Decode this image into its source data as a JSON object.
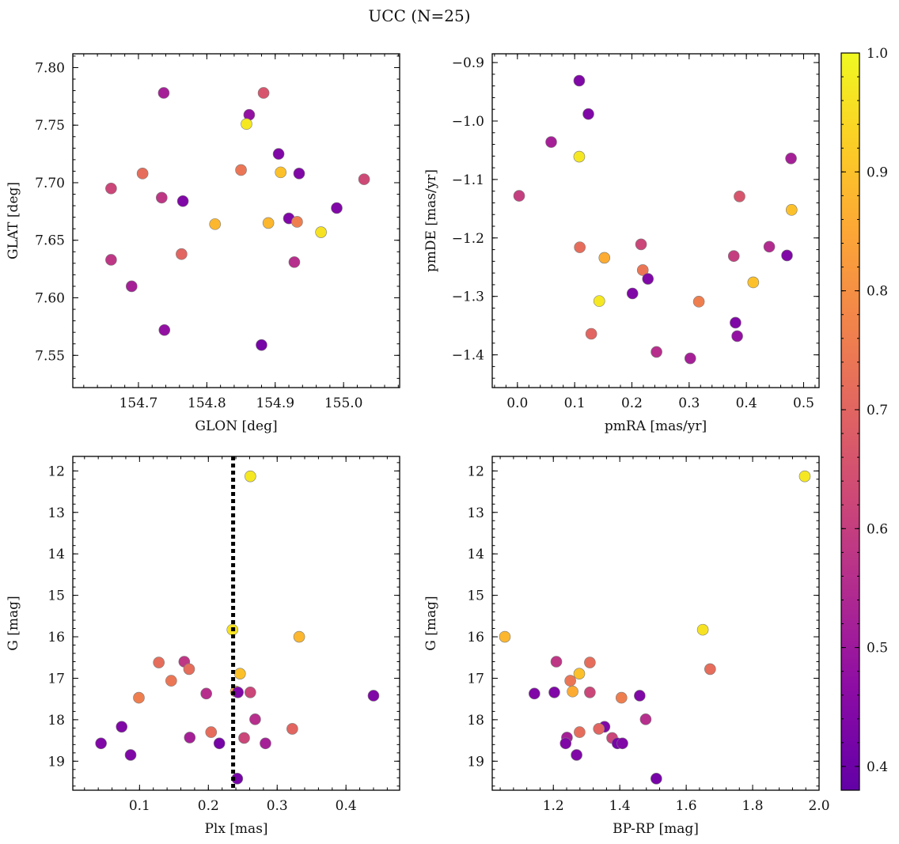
{
  "figure": {
    "title": "UCC (N=25)"
  },
  "colorbar": {
    "min": 0.38,
    "max": 1.0,
    "ticks": [
      0.4,
      0.5,
      0.6,
      0.7,
      0.8,
      0.9,
      1.0
    ],
    "tick_labels": [
      "0.4",
      "0.5",
      "0.6",
      "0.7",
      "0.8",
      "0.9",
      "1.0"
    ],
    "colormap": "plasma"
  },
  "chart_data": [
    {
      "type": "scatter",
      "id": "glon-glat",
      "xlabel": "GLON [deg]",
      "ylabel": "GLAT [deg]",
      "xlim": [
        154.604,
        155.082
      ],
      "ylim": [
        7.522,
        7.812
      ],
      "y_inverted": false,
      "xticks": [
        154.7,
        154.8,
        154.9,
        155.0
      ],
      "xtick_labels": [
        "154.7",
        "154.8",
        "154.9",
        "155.0"
      ],
      "yticks": [
        7.55,
        7.6,
        7.65,
        7.7,
        7.75,
        7.8
      ],
      "ytick_labels": [
        "7.55",
        "7.60",
        "7.65",
        "7.70",
        "7.75",
        "7.80"
      ],
      "points": [
        {
          "x": 154.737,
          "y": 7.778,
          "c": 0.52
        },
        {
          "x": 154.883,
          "y": 7.778,
          "c": 0.66
        },
        {
          "x": 154.862,
          "y": 7.759,
          "c": 0.48
        },
        {
          "x": 154.858,
          "y": 7.751,
          "c": 0.97
        },
        {
          "x": 154.905,
          "y": 7.725,
          "c": 0.44
        },
        {
          "x": 154.85,
          "y": 7.711,
          "c": 0.74
        },
        {
          "x": 154.706,
          "y": 7.708,
          "c": 0.72
        },
        {
          "x": 154.908,
          "y": 7.709,
          "c": 0.9
        },
        {
          "x": 154.935,
          "y": 7.708,
          "c": 0.44
        },
        {
          "x": 155.03,
          "y": 7.703,
          "c": 0.63
        },
        {
          "x": 154.66,
          "y": 7.695,
          "c": 0.62
        },
        {
          "x": 154.734,
          "y": 7.687,
          "c": 0.58
        },
        {
          "x": 154.765,
          "y": 7.684,
          "c": 0.44
        },
        {
          "x": 154.99,
          "y": 7.678,
          "c": 0.44
        },
        {
          "x": 154.92,
          "y": 7.669,
          "c": 0.44
        },
        {
          "x": 154.932,
          "y": 7.666,
          "c": 0.76
        },
        {
          "x": 154.812,
          "y": 7.664,
          "c": 0.88
        },
        {
          "x": 154.89,
          "y": 7.665,
          "c": 0.88
        },
        {
          "x": 154.967,
          "y": 7.657,
          "c": 0.96
        },
        {
          "x": 154.763,
          "y": 7.638,
          "c": 0.7
        },
        {
          "x": 154.66,
          "y": 7.633,
          "c": 0.58
        },
        {
          "x": 154.928,
          "y": 7.631,
          "c": 0.56
        },
        {
          "x": 154.69,
          "y": 7.61,
          "c": 0.52
        },
        {
          "x": 154.738,
          "y": 7.572,
          "c": 0.48
        },
        {
          "x": 154.88,
          "y": 7.559,
          "c": 0.42
        }
      ]
    },
    {
      "type": "scatter",
      "id": "pmra-pmde",
      "xlabel": "pmRA [mas/yr]",
      "ylabel": "pmDE [mas/yr]",
      "xlim": [
        -0.044,
        0.527
      ],
      "ylim": [
        -1.456,
        -0.885
      ],
      "y_inverted": false,
      "xticks": [
        0.0,
        0.1,
        0.2,
        0.3,
        0.4,
        0.5
      ],
      "xtick_labels": [
        "0.0",
        "0.1",
        "0.2",
        "0.3",
        "0.4",
        "0.5"
      ],
      "yticks": [
        -1.4,
        -1.3,
        -1.2,
        -1.1,
        -1.0,
        -0.9
      ],
      "ytick_labels": [
        "−1.4",
        "−1.3",
        "−1.2",
        "−1.1",
        "−1.0",
        "−0.9"
      ],
      "points": [
        {
          "x": 0.108,
          "y": -0.931,
          "c": 0.44
        },
        {
          "x": 0.124,
          "y": -0.988,
          "c": 0.44
        },
        {
          "x": 0.059,
          "y": -1.036,
          "c": 0.52
        },
        {
          "x": 0.108,
          "y": -1.061,
          "c": 0.97
        },
        {
          "x": 0.478,
          "y": -1.064,
          "c": 0.52
        },
        {
          "x": 0.003,
          "y": -1.128,
          "c": 0.6
        },
        {
          "x": 0.388,
          "y": -1.129,
          "c": 0.66
        },
        {
          "x": 0.479,
          "y": -1.152,
          "c": 0.9
        },
        {
          "x": 0.216,
          "y": -1.211,
          "c": 0.62
        },
        {
          "x": 0.109,
          "y": -1.216,
          "c": 0.72
        },
        {
          "x": 0.44,
          "y": -1.215,
          "c": 0.55
        },
        {
          "x": 0.152,
          "y": -1.234,
          "c": 0.86
        },
        {
          "x": 0.378,
          "y": -1.231,
          "c": 0.6
        },
        {
          "x": 0.471,
          "y": -1.23,
          "c": 0.44
        },
        {
          "x": 0.219,
          "y": -1.255,
          "c": 0.74
        },
        {
          "x": 0.228,
          "y": -1.27,
          "c": 0.44
        },
        {
          "x": 0.412,
          "y": -1.276,
          "c": 0.9
        },
        {
          "x": 0.201,
          "y": -1.295,
          "c": 0.44
        },
        {
          "x": 0.143,
          "y": -1.308,
          "c": 0.97
        },
        {
          "x": 0.317,
          "y": -1.309,
          "c": 0.76
        },
        {
          "x": 0.381,
          "y": -1.345,
          "c": 0.44
        },
        {
          "x": 0.129,
          "y": -1.364,
          "c": 0.7
        },
        {
          "x": 0.384,
          "y": -1.368,
          "c": 0.48
        },
        {
          "x": 0.243,
          "y": -1.395,
          "c": 0.56
        },
        {
          "x": 0.302,
          "y": -1.406,
          "c": 0.52
        }
      ]
    },
    {
      "type": "scatter",
      "id": "plx-g",
      "xlabel": "Plx [mas]",
      "ylabel": "G [mag]",
      "xlim": [
        0.003,
        0.478
      ],
      "ylim": [
        19.7,
        11.65
      ],
      "y_inverted": true,
      "vline": {
        "x": 0.236,
        "style": "dotted",
        "color": "#000000"
      },
      "xticks": [
        0.1,
        0.2,
        0.3,
        0.4
      ],
      "xtick_labels": [
        "0.1",
        "0.2",
        "0.3",
        "0.4"
      ],
      "yticks": [
        12,
        13,
        14,
        15,
        16,
        17,
        18,
        19
      ],
      "ytick_labels": [
        "12",
        "13",
        "14",
        "15",
        "16",
        "17",
        "18",
        "19"
      ],
      "points": [
        {
          "x": 0.261,
          "y": 12.13,
          "c": 0.97
        },
        {
          "x": 0.235,
          "y": 15.83,
          "c": 0.96
        },
        {
          "x": 0.332,
          "y": 16.0,
          "c": 0.88
        },
        {
          "x": 0.128,
          "y": 16.62,
          "c": 0.72
        },
        {
          "x": 0.165,
          "y": 16.6,
          "c": 0.58
        },
        {
          "x": 0.172,
          "y": 16.78,
          "c": 0.72
        },
        {
          "x": 0.246,
          "y": 16.89,
          "c": 0.9
        },
        {
          "x": 0.146,
          "y": 17.06,
          "c": 0.74
        },
        {
          "x": 0.24,
          "y": 17.32,
          "c": 0.86
        },
        {
          "x": 0.243,
          "y": 17.34,
          "c": 0.44
        },
        {
          "x": 0.197,
          "y": 17.37,
          "c": 0.56
        },
        {
          "x": 0.261,
          "y": 17.34,
          "c": 0.62
        },
        {
          "x": 0.44,
          "y": 17.42,
          "c": 0.44
        },
        {
          "x": 0.099,
          "y": 17.47,
          "c": 0.76
        },
        {
          "x": 0.268,
          "y": 17.99,
          "c": 0.56
        },
        {
          "x": 0.074,
          "y": 18.17,
          "c": 0.44
        },
        {
          "x": 0.322,
          "y": 18.22,
          "c": 0.7
        },
        {
          "x": 0.204,
          "y": 18.3,
          "c": 0.72
        },
        {
          "x": 0.173,
          "y": 18.43,
          "c": 0.52
        },
        {
          "x": 0.252,
          "y": 18.44,
          "c": 0.62
        },
        {
          "x": 0.044,
          "y": 18.57,
          "c": 0.44
        },
        {
          "x": 0.216,
          "y": 18.57,
          "c": 0.42
        },
        {
          "x": 0.283,
          "y": 18.57,
          "c": 0.52
        },
        {
          "x": 0.087,
          "y": 18.85,
          "c": 0.44
        },
        {
          "x": 0.242,
          "y": 19.42,
          "c": 0.42
        }
      ]
    },
    {
      "type": "scatter",
      "id": "bprp-g",
      "xlabel": "BP-RP [mag]",
      "ylabel": "G [mag]",
      "xlim": [
        1.016,
        2.0
      ],
      "ylim": [
        19.7,
        11.65
      ],
      "y_inverted": true,
      "xticks": [
        1.2,
        1.4,
        1.6,
        1.8,
        2.0
      ],
      "xtick_labels": [
        "1.2",
        "1.4",
        "1.6",
        "1.8",
        "2.0"
      ],
      "yticks": [
        12,
        13,
        14,
        15,
        16,
        17,
        18,
        19
      ],
      "ytick_labels": [
        "12",
        "13",
        "14",
        "15",
        "16",
        "17",
        "18",
        "19"
      ],
      "points": [
        {
          "x": 1.957,
          "y": 12.13,
          "c": 0.97
        },
        {
          "x": 1.65,
          "y": 15.83,
          "c": 0.96
        },
        {
          "x": 1.054,
          "y": 16.0,
          "c": 0.88
        },
        {
          "x": 1.209,
          "y": 16.6,
          "c": 0.58
        },
        {
          "x": 1.31,
          "y": 16.62,
          "c": 0.72
        },
        {
          "x": 1.672,
          "y": 16.78,
          "c": 0.72
        },
        {
          "x": 1.278,
          "y": 16.89,
          "c": 0.9
        },
        {
          "x": 1.251,
          "y": 17.06,
          "c": 0.74
        },
        {
          "x": 1.143,
          "y": 17.37,
          "c": 0.44
        },
        {
          "x": 1.203,
          "y": 17.34,
          "c": 0.44
        },
        {
          "x": 1.258,
          "y": 17.32,
          "c": 0.86
        },
        {
          "x": 1.31,
          "y": 17.34,
          "c": 0.62
        },
        {
          "x": 1.46,
          "y": 17.42,
          "c": 0.44
        },
        {
          "x": 1.405,
          "y": 17.47,
          "c": 0.76
        },
        {
          "x": 1.478,
          "y": 17.99,
          "c": 0.56
        },
        {
          "x": 1.354,
          "y": 18.17,
          "c": 0.44
        },
        {
          "x": 1.337,
          "y": 18.22,
          "c": 0.7
        },
        {
          "x": 1.279,
          "y": 18.3,
          "c": 0.72
        },
        {
          "x": 1.241,
          "y": 18.43,
          "c": 0.52
        },
        {
          "x": 1.377,
          "y": 18.44,
          "c": 0.62
        },
        {
          "x": 1.237,
          "y": 18.57,
          "c": 0.44
        },
        {
          "x": 1.393,
          "y": 18.57,
          "c": 0.42
        },
        {
          "x": 1.408,
          "y": 18.57,
          "c": 0.44
        },
        {
          "x": 1.27,
          "y": 18.85,
          "c": 0.44
        },
        {
          "x": 1.51,
          "y": 19.42,
          "c": 0.42
        }
      ]
    }
  ]
}
